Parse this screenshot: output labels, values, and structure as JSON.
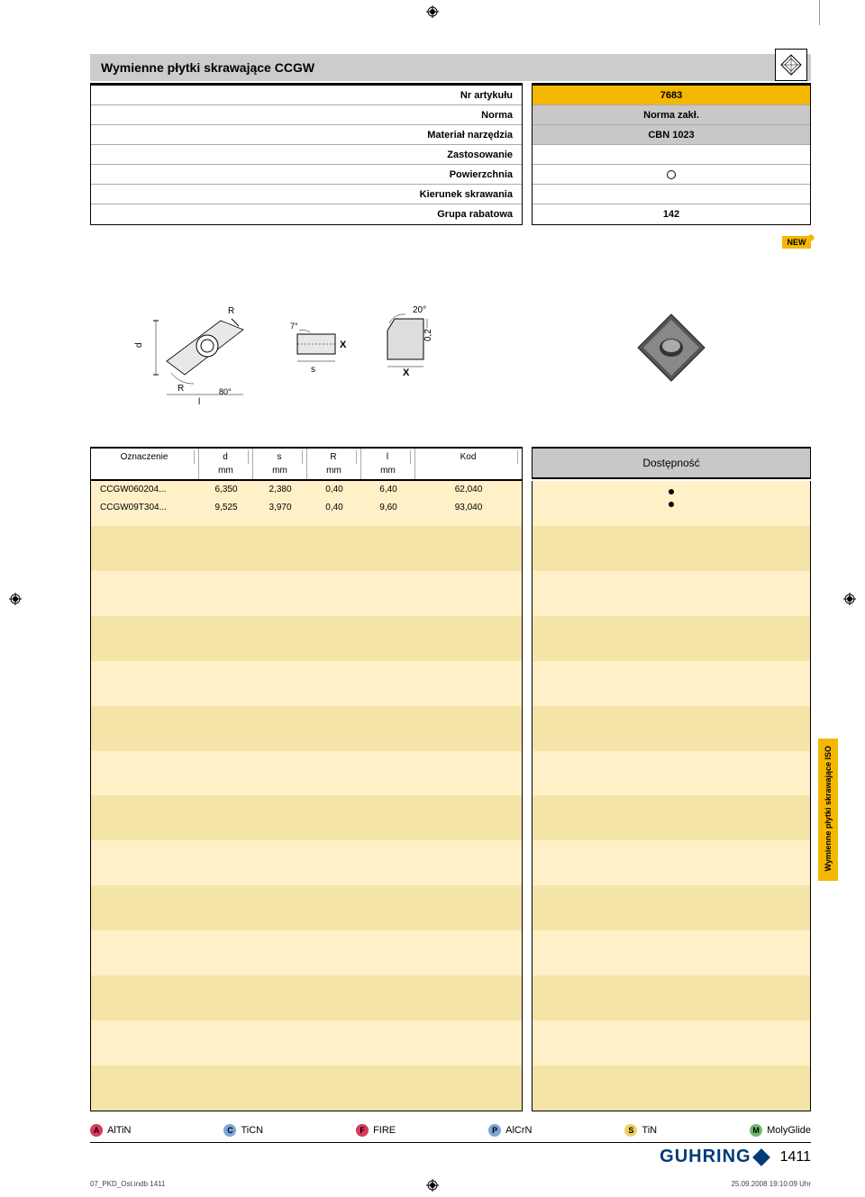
{
  "page_title": "Wymienne płytki skrawające CCGW",
  "spec_labels": {
    "nr": "Nr artykułu",
    "norma": "Norma",
    "material": "Materiał narzędzia",
    "zastos": "Zastosowanie",
    "powierz": "Powierzchnia",
    "kierunek": "Kierunek skrawania",
    "grupa": "Grupa rabatowa"
  },
  "spec_values": {
    "nr": "7683",
    "norma": "Norma zakł.",
    "material": "CBN 1023",
    "grupa": "142"
  },
  "new_label": "NEW",
  "table_header": {
    "oznacz": "Oznaczenie",
    "d": "d",
    "s": "s",
    "R": "R",
    "l": "l",
    "kod": "Kod",
    "unit": "mm"
  },
  "avail_label": "Dostępność",
  "rows": [
    {
      "des": "CCGW060204...",
      "d": "6,350",
      "s": "2,380",
      "r": "0,40",
      "l": "6,40",
      "kod": "62,040"
    },
    {
      "des": "CCGW09T304...",
      "d": "9,525",
      "s": "3,970",
      "r": "0,40",
      "l": "9,60",
      "kod": "93,040"
    }
  ],
  "diagram": {
    "angle1": "20°",
    "angle2": "7°",
    "angle3": "80°",
    "x": "X",
    "r": "R",
    "d": "d",
    "l": "l",
    "s": "s",
    "zero2": "0,2"
  },
  "side_tab": "Wymienne płytki\nskrawające ISO",
  "legend": [
    {
      "letter": "A",
      "label": "AlTiN",
      "bg": "#d93a5a",
      "fg": "#000"
    },
    {
      "letter": "C",
      "label": "TiCN",
      "bg": "#7aa6d6",
      "fg": "#000"
    },
    {
      "letter": "F",
      "label": "FIRE",
      "bg": "#d93a5a",
      "fg": "#000"
    },
    {
      "letter": "P",
      "label": "AlCrN",
      "bg": "#7aa6d6",
      "fg": "#000"
    },
    {
      "letter": "S",
      "label": "TiN",
      "bg": "#f0d060",
      "fg": "#000"
    },
    {
      "letter": "M",
      "label": "MolyGlide",
      "bg": "#6fb96f",
      "fg": "#000"
    }
  ],
  "brand": "GUHRING",
  "page_number": "1411",
  "footer_file": "07_PKD_Ost.indb   1411",
  "footer_time": "25.09.2008   19:10:09 Uhr"
}
